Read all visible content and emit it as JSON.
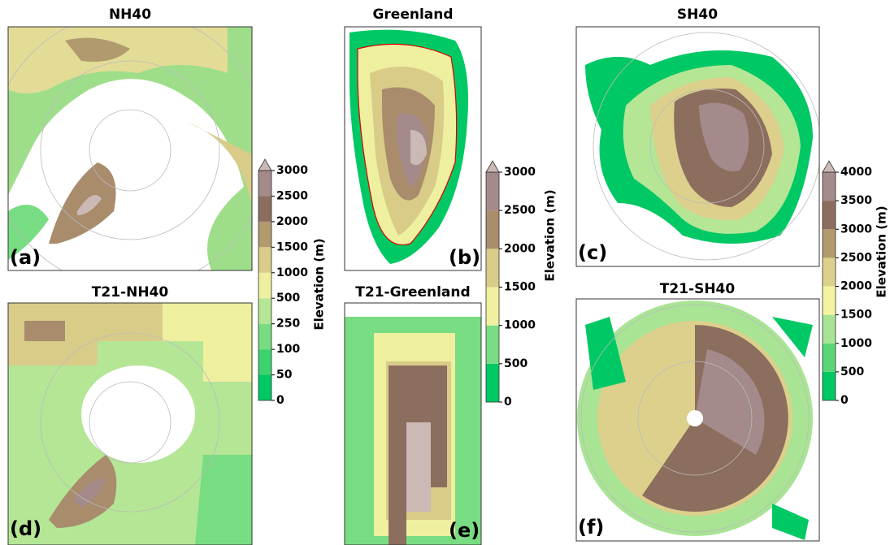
{
  "panels": [
    {
      "title": "NH40",
      "label": "(a)"
    },
    {
      "title": "Greenland",
      "label": "(b)"
    },
    {
      "title": "SH40",
      "label": "(c)"
    },
    {
      "title": "T21-NH40",
      "label": "(d)"
    },
    {
      "title": "T21-Greenland",
      "label": "(e)"
    },
    {
      "title": "T21-SH40",
      "label": "(f)"
    }
  ],
  "colorbars": [
    {
      "label": "Elevation (m)",
      "ticks": [
        0,
        50,
        100,
        250,
        500,
        1000,
        1500,
        2000,
        2500,
        3000
      ],
      "colors": [
        "#00c864",
        "#3cd26e",
        "#78dc82",
        "#b4e696",
        "#eef0a0",
        "#d8cc88",
        "#b09a6e",
        "#8c6e5e",
        "#a48a8a"
      ],
      "extend_color": "#cbb9b5"
    },
    {
      "label": "Elevation (m)",
      "ticks": [
        0,
        500,
        1000,
        1500,
        2000,
        2500,
        3000
      ],
      "colors": [
        "#00c864",
        "#78dc82",
        "#eef0a0",
        "#d8cc88",
        "#a88c6c",
        "#a48a8a"
      ],
      "extend_color": "#cbb9b5"
    },
    {
      "label": "Elevation (m)",
      "ticks": [
        0,
        500,
        1000,
        1500,
        2000,
        2500,
        3000,
        3500,
        4000
      ],
      "colors": [
        "#00c864",
        "#5ad678",
        "#a8e494",
        "#f4f4a0",
        "#dcd08c",
        "#b09a6e",
        "#8c6e5e",
        "#a48a8a"
      ],
      "extend_color": "#cbb9b5"
    }
  ]
}
